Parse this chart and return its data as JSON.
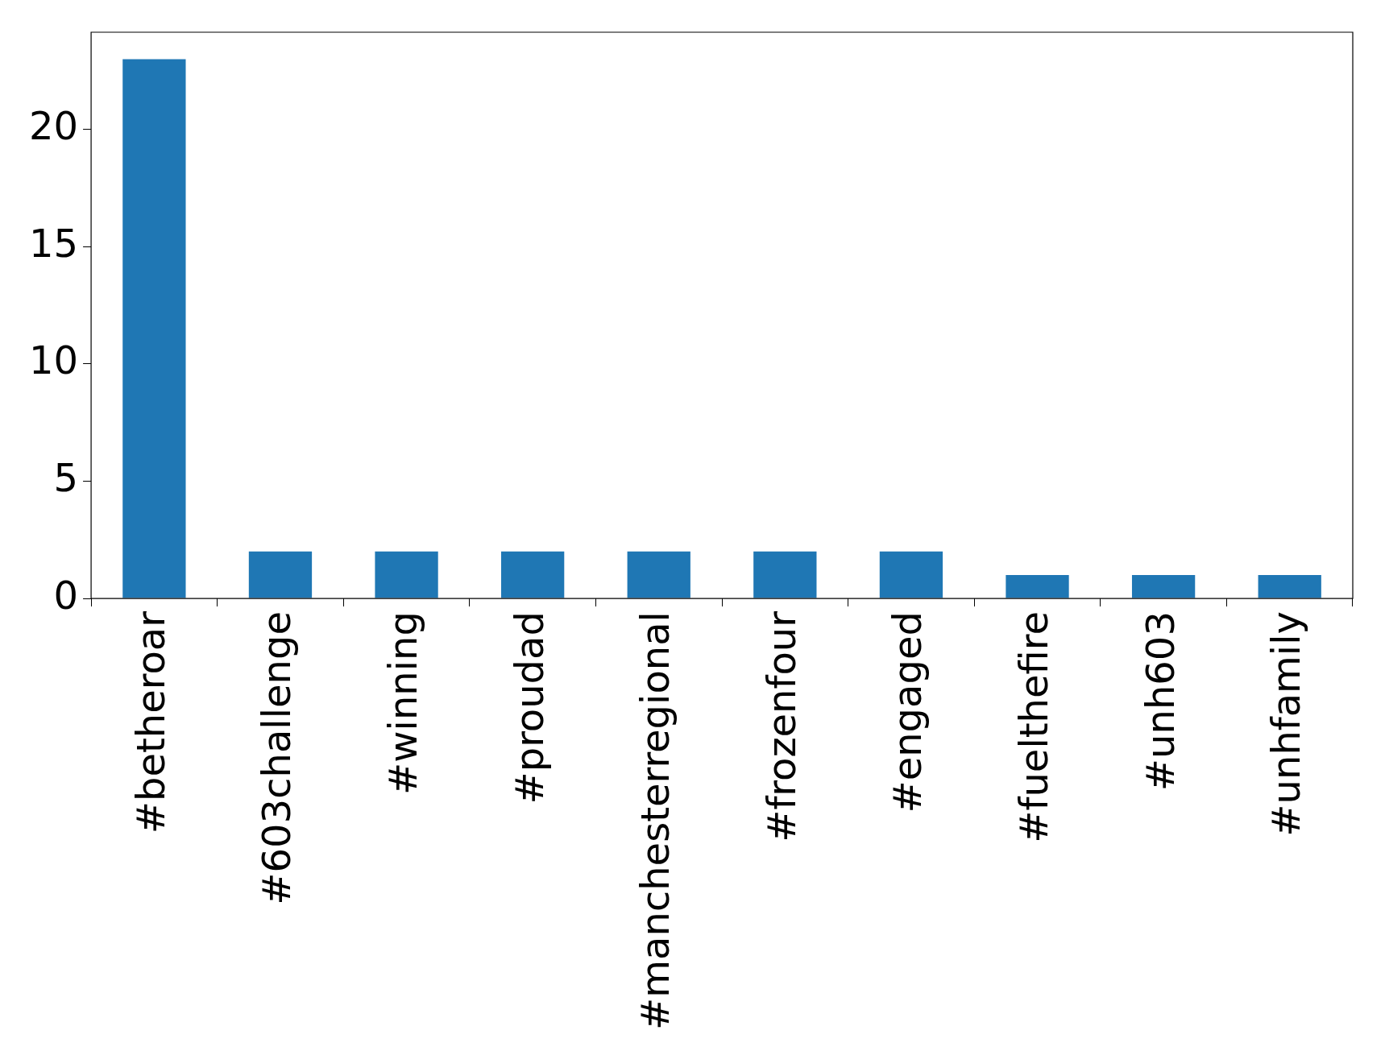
{
  "chart_data": {
    "type": "bar",
    "categories": [
      "#betheroar",
      "#603challenge",
      "#winning",
      "#proudad",
      "#manchesterregional",
      "#frozenfour",
      "#engaged",
      "#fuelthefire",
      "#unh603",
      "#unhfamily"
    ],
    "values": [
      23,
      2,
      2,
      2,
      2,
      2,
      2,
      1,
      1,
      1
    ],
    "color": "#1f77b4",
    "ylim": [
      0,
      24.15
    ],
    "yticks": [
      0,
      5,
      10,
      15,
      20
    ],
    "legend": false
  }
}
